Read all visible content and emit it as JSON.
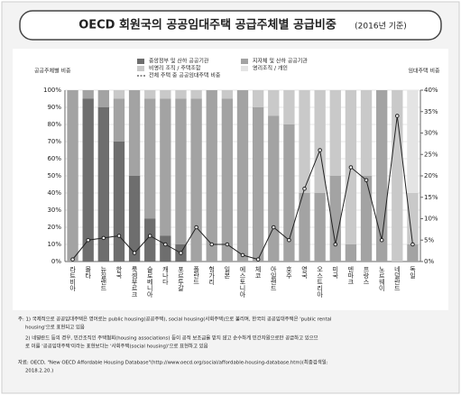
{
  "chart_data": {
    "type": "stacked_bar_line",
    "title": "OECD 회원국의 공공임대주택 공급주체별 공급비중",
    "subtitle": "(2016년 기준)",
    "y_label": "공공주체별 비중",
    "y2_label": "임대주택 비중",
    "categories": [
      "라트비아",
      "몰타",
      "뉴질랜드",
      "한국",
      "룩셈부르크",
      "슬로베니아",
      "캐나다",
      "포르투갈",
      "폴란드",
      "헝가리",
      "일본",
      "에스토니아",
      "체코",
      "아일랜드",
      "호주",
      "영국",
      "오스트리아",
      "미국",
      "덴마크",
      "프랑스",
      "노르웨이",
      "네덜란드",
      "독일"
    ],
    "series": [
      {
        "name": "중앙정부 및 산하 공공기관",
        "color": "#6e6e6e",
        "values": [
          0,
          95,
          90,
          70,
          50,
          25,
          15,
          10,
          0,
          0,
          0,
          0,
          0,
          0,
          0,
          0,
          0,
          0,
          0,
          0,
          0,
          0,
          0
        ]
      },
      {
        "name": "지자체 및 산하 공공기관",
        "color": "#a3a3a3",
        "values": [
          100,
          5,
          10,
          25,
          50,
          70,
          80,
          85,
          95,
          100,
          95,
          100,
          90,
          85,
          80,
          40,
          40,
          50,
          10,
          50,
          100,
          0,
          10
        ]
      },
      {
        "name": "비영리 조직 / 주택조합",
        "color": "#c9c9c9",
        "values": [
          0,
          0,
          0,
          5,
          0,
          5,
          5,
          5,
          5,
          0,
          5,
          0,
          10,
          15,
          20,
          60,
          60,
          50,
          90,
          50,
          0,
          100,
          30
        ]
      },
      {
        "name": "영리조직 / 개인",
        "color": "#e4e4e4",
        "values": [
          0,
          0,
          0,
          0,
          0,
          0,
          0,
          0,
          0,
          0,
          0,
          0,
          0,
          0,
          0,
          0,
          0,
          0,
          0,
          0,
          0,
          0,
          60
        ]
      },
      {
        "name": "전체 주택 중 공공임대주택 비중",
        "color": "#222222",
        "axis": "y2",
        "type": "line",
        "values": [
          0.5,
          5,
          5.5,
          6,
          2,
          6,
          4,
          2,
          8,
          4,
          4,
          1.5,
          0.5,
          8,
          5,
          17,
          26,
          4,
          22,
          19,
          5,
          34,
          4
        ]
      }
    ],
    "ylim": [
      0,
      100
    ],
    "yticks": [
      {
        "value": 0,
        "label": "0%"
      },
      {
        "value": 10,
        "label": "10%"
      },
      {
        "value": 20,
        "label": "20%"
      },
      {
        "value": 30,
        "label": "30%"
      },
      {
        "value": 40,
        "label": "40%"
      },
      {
        "value": 50,
        "label": "50%"
      },
      {
        "value": 60,
        "label": "60%"
      },
      {
        "value": 70,
        "label": "70%"
      },
      {
        "value": 80,
        "label": "80%"
      },
      {
        "value": 90,
        "label": "90%"
      },
      {
        "value": 100,
        "label": "100%"
      }
    ],
    "y2lim": [
      0,
      40
    ],
    "y2ticks": [
      {
        "value": 0,
        "label": "0%"
      },
      {
        "value": 5,
        "label": "5%"
      },
      {
        "value": 10,
        "label": "10%"
      },
      {
        "value": 15,
        "label": "15%"
      },
      {
        "value": 20,
        "label": "20%"
      },
      {
        "value": 25,
        "label": "25%"
      },
      {
        "value": 30,
        "label": "30%"
      },
      {
        "value": 35,
        "label": "35%"
      },
      {
        "value": 40,
        "label": "40%"
      }
    ],
    "grid": true,
    "notes": [
      "주: 1) 국제적으로 공공임대주택은 영어로는 public housing(공공주택), social housing(사회주택)으로 불리며, 한국의 공공임대주택은 'public rental",
      "housing'으로 표현되고 있음",
      "2) 네덜란드 등의 경우, 민간조직인 주택협회(housing associations) 등이 공적 보조금을 받지 않고 순수하게 민간자원으로만 공급하고 있으므",
      "로 이를 '공공임대주택'이라는 표현보다는 '사회주택(social housing)'으로 표현하고 있음",
      "자료: OECD, \"New OECD Affordable Housing Database\"(http://www.oecd.org/social/affordable-housing-database.htm)(최종검색일:",
      "2018.2.20.)"
    ]
  }
}
